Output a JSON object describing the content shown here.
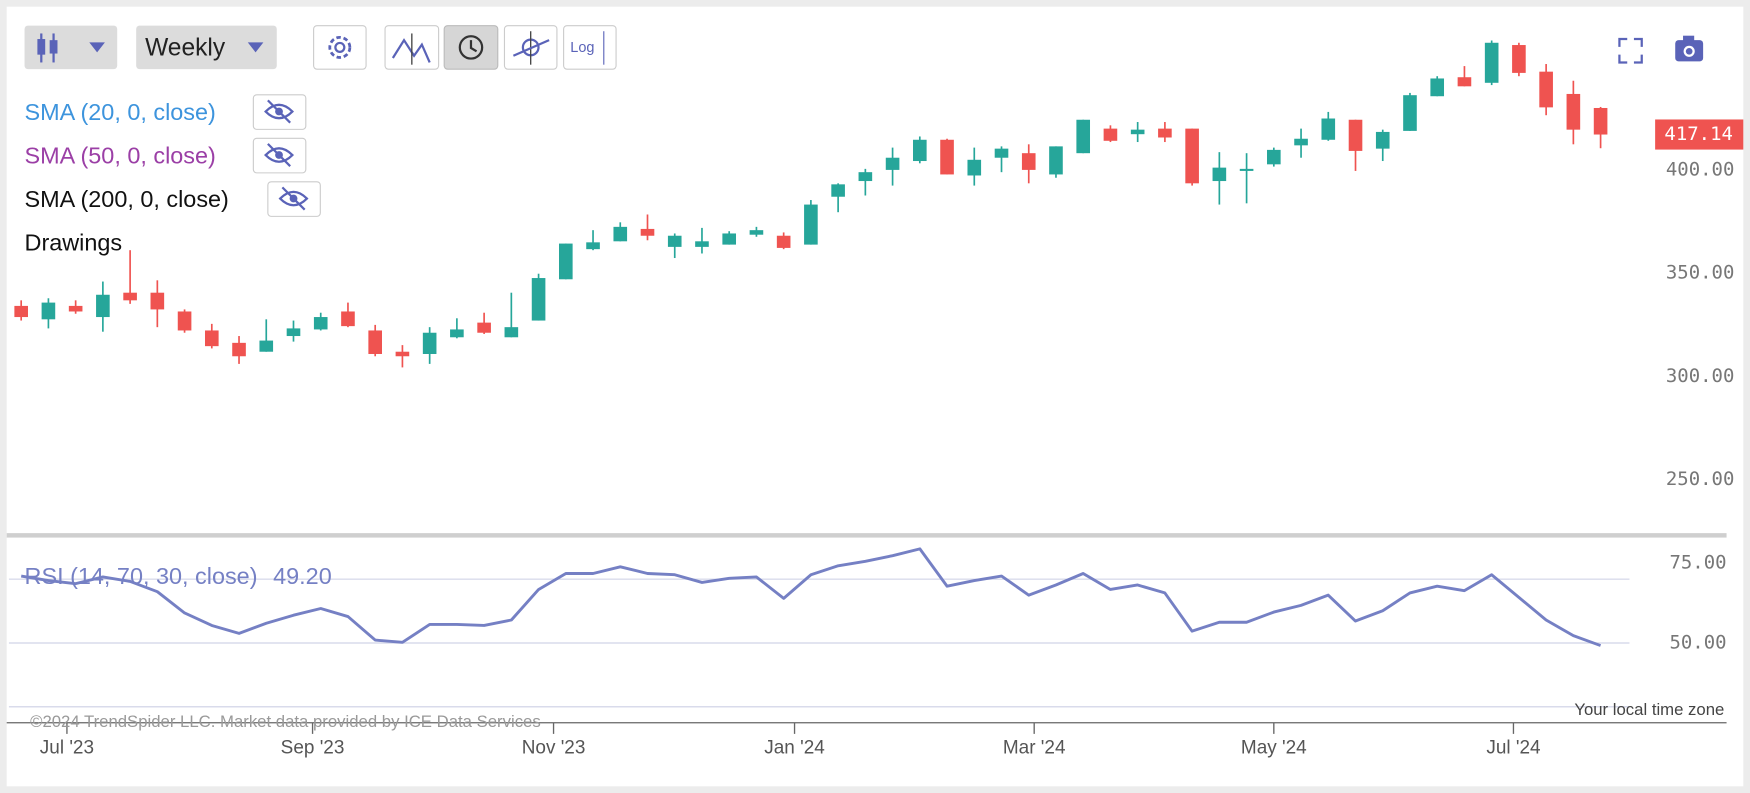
{
  "toolbar": {
    "interval": "Weekly",
    "log_button": "Log"
  },
  "legend": [
    {
      "label": "SMA (20, 0, close)",
      "color": "#3d94dd"
    },
    {
      "label": "SMA (50, 0, close)",
      "color": "#9b3fa6"
    },
    {
      "label": "SMA (200, 0, close)",
      "color": "#111111"
    }
  ],
  "drawings": "Drawings",
  "chart_data": [
    {
      "type": "candlestick",
      "up_color": "#26a69a",
      "down_color": "#ef5350",
      "open": [
        334.1,
        327.6,
        334.1,
        328.7,
        340.5,
        340.5,
        331.4,
        322.2,
        316.2,
        311.9,
        319.5,
        322.7,
        331.4,
        322.2,
        311.9,
        310.8,
        318.9,
        326.0,
        318.9,
        327.0,
        347.0,
        361.6,
        365.4,
        371.4,
        362.7,
        362.7,
        363.8,
        368.6,
        368.1,
        363.8,
        387.0,
        394.6,
        400.0,
        404.3,
        414.6,
        397.3,
        405.9,
        408.1,
        397.8,
        408.1,
        420.0,
        417.3,
        420.0,
        420.0,
        394.6,
        399.5,
        402.7,
        411.9,
        414.6,
        424.3,
        410.3,
        418.9,
        435.7,
        444.9,
        442.2,
        460.5,
        447.6,
        436.8,
        430.0
      ],
      "high": [
        336.8,
        337.8,
        336.8,
        345.9,
        361.1,
        346.5,
        332.4,
        325.4,
        319.5,
        327.6,
        327.0,
        330.8,
        335.7,
        324.9,
        315.1,
        323.8,
        328.1,
        330.8,
        340.5,
        349.7,
        364.3,
        370.8,
        374.6,
        378.4,
        369.2,
        371.9,
        370.3,
        372.4,
        369.7,
        385.4,
        393.5,
        400.5,
        410.8,
        416.2,
        415.1,
        410.8,
        411.4,
        412.4,
        411.4,
        424.3,
        421.6,
        423.2,
        423.2,
        420.0,
        408.6,
        408.1,
        410.8,
        420.0,
        428.1,
        424.3,
        419.5,
        437.3,
        445.4,
        450.3,
        462.7,
        461.6,
        451.3,
        443.2,
        430.5
      ],
      "low": [
        327.0,
        323.2,
        330.3,
        321.6,
        335.1,
        323.8,
        321.1,
        313.5,
        306.0,
        311.9,
        316.8,
        322.2,
        323.8,
        309.7,
        304.3,
        306.0,
        318.4,
        320.5,
        318.9,
        327.0,
        347.0,
        361.1,
        365.4,
        365.9,
        357.3,
        359.5,
        363.8,
        367.6,
        361.6,
        363.8,
        379.5,
        387.6,
        392.4,
        403.2,
        397.8,
        392.4,
        398.9,
        393.5,
        396.2,
        408.1,
        413.5,
        413.5,
        413.5,
        392.4,
        383.2,
        383.8,
        401.6,
        405.9,
        414.1,
        399.5,
        404.3,
        418.9,
        435.7,
        440.5,
        441.1,
        445.4,
        426.5,
        412.4,
        410.5
      ],
      "close": [
        328.7,
        335.7,
        331.4,
        339.5,
        336.8,
        332.4,
        322.2,
        314.6,
        309.7,
        317.3,
        323.2,
        328.7,
        324.3,
        310.8,
        309.7,
        321.1,
        322.7,
        321.1,
        323.8,
        347.6,
        364.3,
        364.9,
        372.4,
        368.1,
        368.1,
        365.4,
        369.2,
        370.8,
        362.2,
        383.2,
        393.0,
        398.9,
        405.9,
        414.6,
        397.8,
        404.9,
        410.3,
        400.0,
        411.4,
        424.3,
        414.1,
        419.5,
        415.7,
        393.5,
        401.1,
        400.5,
        409.7,
        415.1,
        424.9,
        409.2,
        418.4,
        436.2,
        444.3,
        440.5,
        461.6,
        447.0,
        430.3,
        419.5,
        417.14
      ],
      "ylim": [
        224,
        478
      ],
      "yticks": [
        {
          "value": 250,
          "label": "250.00"
        },
        {
          "value": 300,
          "label": "300.00"
        },
        {
          "value": 350,
          "label": "350.00"
        },
        {
          "value": 400,
          "label": "400.00"
        }
      ],
      "xlim": [
        -0.45,
        59.47
      ],
      "xticks": [
        {
          "value": 1.68,
          "label": "Jul '23"
        },
        {
          "value": 10.7,
          "label": "Sep '23"
        },
        {
          "value": 19.55,
          "label": "Nov '23"
        },
        {
          "value": 28.4,
          "label": "Jan '24"
        },
        {
          "value": 37.2,
          "label": "Mar '24"
        },
        {
          "value": 46.0,
          "label": "May '24"
        },
        {
          "value": 54.8,
          "label": "Jul '24"
        }
      ]
    },
    {
      "type": "line",
      "title": "RSI (14, 70, 30, close)",
      "color": "#7580c4",
      "values": [
        71.0,
        69.6,
        68.6,
        70.7,
        69.3,
        66.1,
        59.4,
        55.5,
        53.0,
        56.2,
        58.7,
        60.8,
        58.3,
        50.9,
        50.2,
        55.8,
        55.8,
        55.5,
        57.2,
        66.8,
        71.8,
        71.8,
        73.9,
        71.8,
        71.4,
        69.0,
        70.3,
        70.7,
        64.0,
        71.4,
        74.2,
        75.6,
        77.4,
        79.5,
        67.8,
        69.6,
        71.0,
        65.0,
        68.2,
        71.8,
        66.8,
        68.2,
        65.7,
        53.7,
        56.5,
        56.5,
        59.7,
        61.8,
        65.0,
        56.9,
        60.1,
        65.7,
        67.8,
        66.4,
        71.4,
        64.3,
        57.2,
        52.3,
        49.2
      ],
      "last_label": "49.20",
      "ylim": [
        25,
        82
      ],
      "yticks": [
        {
          "value": 75,
          "label": "75.00"
        },
        {
          "value": 50,
          "label": "50.00"
        }
      ],
      "levels": [
        70,
        50,
        30
      ]
    }
  ],
  "footer": {
    "copyright": "©2024 TrendSpider LLC. Market data provided by ICE Data Services",
    "timezone": "Your local time zone"
  }
}
